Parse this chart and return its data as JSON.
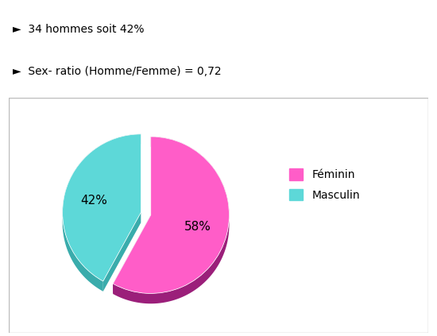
{
  "slices": [
    58,
    42
  ],
  "labels": [
    "Féminin",
    "Masculin"
  ],
  "colors_top": [
    "#FF5DC8",
    "#5DD8D8"
  ],
  "colors_side": [
    "#9B1F7A",
    "#3AACAC"
  ],
  "explode": [
    0.0,
    0.13
  ],
  "pct_labels": [
    "58%",
    "42%"
  ],
  "legend_labels": [
    "Féminin",
    "Masculin"
  ],
  "legend_colors": [
    "#FF5DC8",
    "#5DD8D8"
  ],
  "startangle": 90,
  "depth": 0.13,
  "background_color": "#ffffff",
  "text_lines": [
    "   34 hommes soit 42%",
    "   Sex- ratio (Homme/Femme) = 0,72"
  ],
  "label_fontsize": 11,
  "legend_fontsize": 10,
  "text_fontsize": 10
}
